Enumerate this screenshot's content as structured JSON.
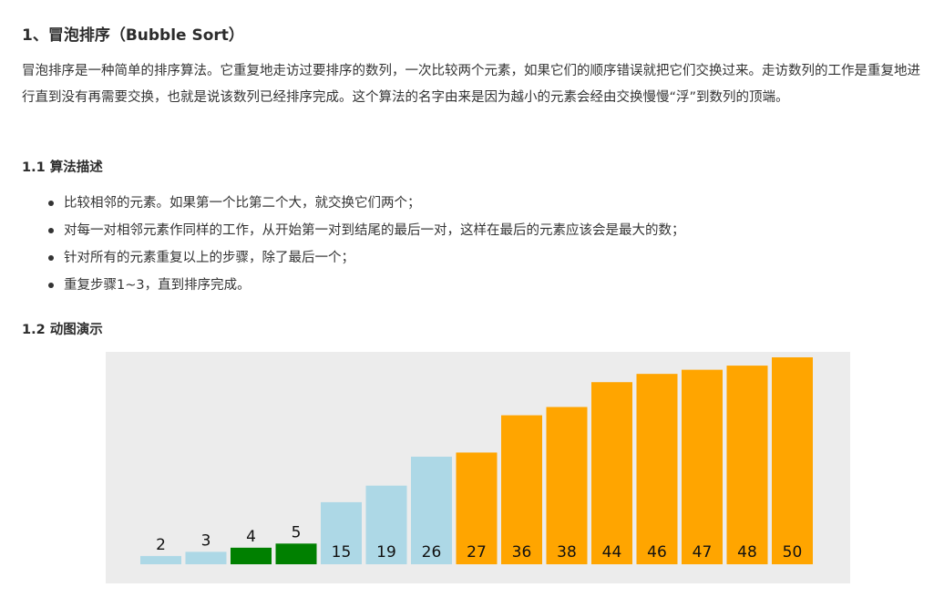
{
  "article": {
    "title": "1、冒泡排序（Bubble Sort）",
    "intro": "冒泡排序是一种简单的排序算法。它重复地走访过要排序的数列，一次比较两个元素，如果它们的顺序错误就把它们交换过来。走访数列的工作是重复地进行直到没有再需要交换，也就是说该数列已经排序完成。这个算法的名字由来是因为越小的元素会经由交换慢慢“浮”到数列的顶端。",
    "section_desc_title": "1.1 算法描述",
    "steps": [
      "比较相邻的元素。如果第一个比第二个大，就交换它们两个；",
      "对每一对相邻元素作同样的工作，从开始第一对到结尾的最后一对，这样在最后的元素应该会是最大的数；",
      "针对所有的元素重复以上的步骤，除了最后一个；",
      "重复步骤1~3，直到排序完成。"
    ],
    "section_demo_title": "1.2 动图演示"
  },
  "chart_data": {
    "type": "bar",
    "categories": [
      "2",
      "3",
      "4",
      "5",
      "15",
      "19",
      "26",
      "27",
      "36",
      "38",
      "44",
      "46",
      "47",
      "48",
      "50"
    ],
    "values": [
      2,
      3,
      4,
      5,
      15,
      19,
      26,
      27,
      36,
      38,
      44,
      46,
      47,
      48,
      50
    ],
    "states": [
      "unsorted",
      "unsorted",
      "comparing",
      "comparing",
      "unsorted",
      "unsorted",
      "unsorted",
      "sorted",
      "sorted",
      "sorted",
      "sorted",
      "sorted",
      "sorted",
      "sorted",
      "sorted"
    ],
    "colors": {
      "unsorted": "#add8e6",
      "comparing": "#008000",
      "sorted": "#ffa500",
      "background": "#ececec"
    },
    "ylim": [
      0,
      50
    ],
    "grid": false
  }
}
